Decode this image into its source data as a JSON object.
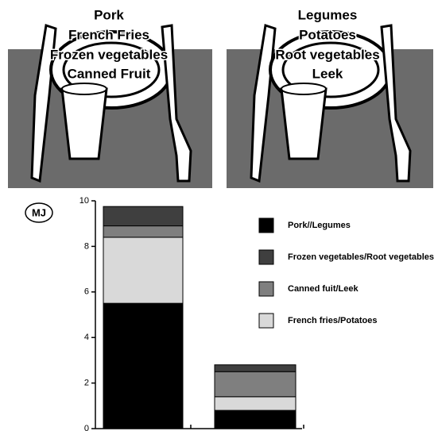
{
  "plates": [
    {
      "lines": [
        "Pork",
        "French Fries",
        "Frozen vegetables",
        "Canned Fruit"
      ]
    },
    {
      "lines": [
        "Legumes",
        "Potatoes",
        "Root vegetables",
        "Leek"
      ]
    }
  ],
  "chart_data": {
    "type": "stacked_bar",
    "y_label": "MJ",
    "categories": [
      null,
      null
    ],
    "series": [
      {
        "name": "Pork//Legumes",
        "color": "#000000",
        "values": [
          5.5,
          0.8
        ]
      },
      {
        "name": "French fries/Potatoes",
        "color": "#d9d9d9",
        "values": [
          2.9,
          0.6
        ]
      },
      {
        "name": "Canned fuit/Leek",
        "color": "#7f7f7f",
        "values": [
          0.5,
          1.1
        ]
      },
      {
        "name": "Frozen vegetables/Root vegetables",
        "color": "#3f3f3f",
        "values": [
          0.85,
          0.3
        ]
      }
    ],
    "legend_order": [
      0,
      3,
      2,
      1
    ],
    "ylim": [
      0,
      10
    ],
    "yticks": [
      0,
      2,
      4,
      6,
      8,
      10
    ],
    "grid": false
  }
}
